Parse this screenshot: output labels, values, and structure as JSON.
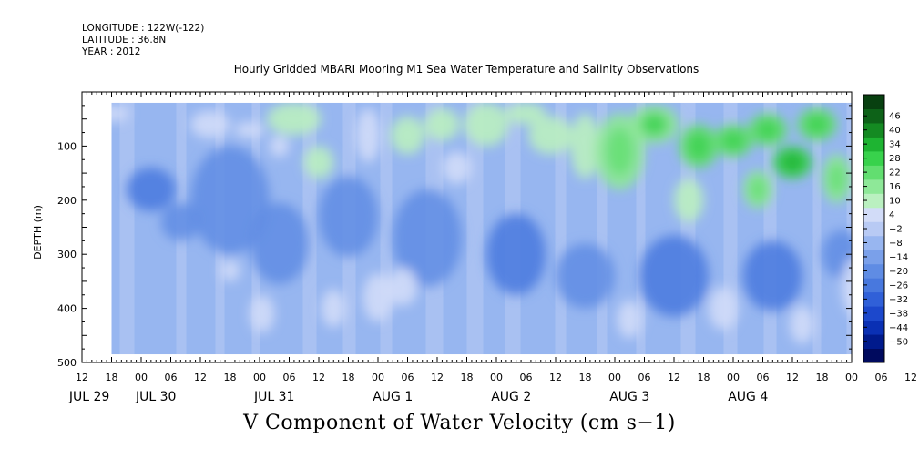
{
  "header": {
    "longitude": "LONGITUDE : 122W(-122)",
    "latitude": "LATITUDE : 36.8N",
    "year": "YEAR : 2012"
  },
  "chart_data": {
    "type": "heatmap",
    "title": "Hourly Gridded MBARI Mooring M1 Sea Water Temperature and Salinity Observations",
    "xlabel": "V Component of Water Velocity (cm s−1)",
    "ylabel": "DEPTH (m)",
    "ylim": [
      500,
      0
    ],
    "y_ticks": [
      100,
      200,
      300,
      400,
      500
    ],
    "x_range": [
      "2012-07-29 12:00",
      "2012-08-05 00:00"
    ],
    "x_hour_ticks": [
      "12",
      "18",
      "00",
      "06",
      "12",
      "18",
      "00",
      "06",
      "12",
      "18",
      "00",
      "06",
      "12",
      "18",
      "00",
      "06",
      "12",
      "18",
      "00",
      "06",
      "12",
      "18",
      "00",
      "06",
      "12",
      "18",
      "00",
      "06",
      "12",
      "18"
    ],
    "x_day_labels": [
      "JUL 29",
      "JUL 30",
      "JUL 31",
      "AUG  1",
      "AUG  2",
      "AUG  3",
      "AUG  4"
    ],
    "data_extent": {
      "time_start": "2012-07-29 18:00",
      "depth_top": 20,
      "depth_bottom": 485
    },
    "colorbar": {
      "levels": [
        -50,
        -44,
        -38,
        -32,
        -26,
        -20,
        -14,
        -8,
        -2,
        4,
        10,
        16,
        22,
        28,
        34,
        40,
        46
      ],
      "label_levels": [
        "46",
        "40",
        "34",
        "28",
        "22",
        "16",
        "10",
        "4",
        "−2",
        "−8",
        "−14",
        "−20",
        "−26",
        "−32",
        "−38",
        "−44",
        "−50"
      ],
      "colors": [
        "#000a5e",
        "#001a8c",
        "#0a30b4",
        "#1c48cc",
        "#3060d8",
        "#4878de",
        "#5f8ce4",
        "#7aa0ea",
        "#98b6f0",
        "#b8caf4",
        "#d2dcf8",
        "#baf0c0",
        "#8ee898",
        "#62de70",
        "#38d24c",
        "#1eb432",
        "#148a22",
        "#0d6218",
        "#084010"
      ]
    },
    "green_regions": [
      {
        "t": -4.0,
        "d": 380,
        "dt": 2.0,
        "dd": 30,
        "v": 6
      },
      {
        "t": 0.5,
        "d": 40,
        "dt": 3.0,
        "dd": 30,
        "v": 5
      },
      {
        "t": 20,
        "d": 60,
        "dt": 4.0,
        "dd": 50,
        "v": 5
      },
      {
        "t": 24,
        "d": 330,
        "dt": 2.0,
        "dd": 40,
        "v": 6
      },
      {
        "t": 28,
        "d": 70,
        "dt": 3.0,
        "dd": 30,
        "v": 6
      },
      {
        "t": 30.5,
        "d": 410,
        "dt": 2.5,
        "dd": 70,
        "v": 6
      },
      {
        "t": 34,
        "d": 100,
        "dt": 2.0,
        "dd": 40,
        "v": 6
      },
      {
        "t": 37,
        "d": 50,
        "dt": 5.5,
        "dd": 60,
        "v": 10
      },
      {
        "t": 42,
        "d": 130,
        "dt": 3.0,
        "dd": 60,
        "v": 10
      },
      {
        "t": 45,
        "d": 400,
        "dt": 2.5,
        "dd": 70,
        "v": 7
      },
      {
        "t": 52,
        "d": 80,
        "dt": 2.5,
        "dd": 100,
        "v": 9
      },
      {
        "t": 54,
        "d": 380,
        "dt": 3.0,
        "dd": 90,
        "v": 8
      },
      {
        "t": 59,
        "d": 360,
        "dt": 3.0,
        "dd": 70,
        "v": 7
      },
      {
        "t": 60,
        "d": 80,
        "dt": 3.5,
        "dd": 70,
        "v": 11
      },
      {
        "t": 67,
        "d": 60,
        "dt": 3.5,
        "dd": 60,
        "v": 12
      },
      {
        "t": 70,
        "d": 140,
        "dt": 3.0,
        "dd": 60,
        "v": 9
      },
      {
        "t": 76,
        "d": 60,
        "dt": 4.5,
        "dd": 80,
        "v": 10
      },
      {
        "t": 84,
        "d": 40,
        "dt": 4.0,
        "dd": 40,
        "v": 11
      },
      {
        "t": 89,
        "d": 80,
        "dt": 4.5,
        "dd": 70,
        "v": 12
      },
      {
        "t": 96,
        "d": 100,
        "dt": 3.0,
        "dd": 120,
        "v": 13
      },
      {
        "t": 103,
        "d": 110,
        "dt": 5.0,
        "dd": 140,
        "v": 16
      },
      {
        "t": 105,
        "d": 420,
        "dt": 2.5,
        "dd": 70,
        "v": 8
      },
      {
        "t": 110,
        "d": 60,
        "dt": 5.0,
        "dd": 70,
        "v": 20
      },
      {
        "t": 117,
        "d": 200,
        "dt": 3.0,
        "dd": 80,
        "v": 11
      },
      {
        "t": 119,
        "d": 100,
        "dt": 4.0,
        "dd": 80,
        "v": 22
      },
      {
        "t": 126,
        "d": 90,
        "dt": 4.0,
        "dd": 60,
        "v": 24
      },
      {
        "t": 124,
        "d": 400,
        "dt": 3.0,
        "dd": 80,
        "v": 8
      },
      {
        "t": 131,
        "d": 180,
        "dt": 3.0,
        "dd": 70,
        "v": 16
      },
      {
        "t": 133,
        "d": 70,
        "dt": 4.0,
        "dd": 60,
        "v": 22
      },
      {
        "t": 138,
        "d": 130,
        "dt": 4.0,
        "dd": 60,
        "v": 28
      },
      {
        "t": 140,
        "d": 430,
        "dt": 2.5,
        "dd": 70,
        "v": 8
      },
      {
        "t": 143,
        "d": 60,
        "dt": 4.0,
        "dd": 60,
        "v": 24
      },
      {
        "t": 147,
        "d": 160,
        "dt": 3.0,
        "dd": 90,
        "v": 18
      },
      {
        "t": 151,
        "d": 360,
        "dt": 3.0,
        "dd": 110,
        "v": 7
      },
      {
        "t": 154,
        "d": 150,
        "dt": 2.5,
        "dd": 60,
        "v": 12
      }
    ],
    "blue_cores": [
      {
        "t": 8,
        "d": 180,
        "dt": 5.0,
        "dd": 80,
        "v": -24
      },
      {
        "t": 14,
        "d": 240,
        "dt": 4.0,
        "dd": 70,
        "v": -20
      },
      {
        "t": 24,
        "d": 200,
        "dt": 8.0,
        "dd": 200,
        "v": -20
      },
      {
        "t": 34,
        "d": 280,
        "dt": 6.0,
        "dd": 150,
        "v": -18
      },
      {
        "t": 48,
        "d": 230,
        "dt": 6.0,
        "dd": 150,
        "v": -20
      },
      {
        "t": 64,
        "d": 270,
        "dt": 7.0,
        "dd": 180,
        "v": -20
      },
      {
        "t": 82,
        "d": 300,
        "dt": 6.0,
        "dd": 150,
        "v": -22
      },
      {
        "t": 96,
        "d": 340,
        "dt": 6.0,
        "dd": 120,
        "v": -18
      },
      {
        "t": 114,
        "d": 340,
        "dt": 7.0,
        "dd": 150,
        "v": -24
      },
      {
        "t": 134,
        "d": 340,
        "dt": 6.0,
        "dd": 130,
        "v": -22
      },
      {
        "t": 148,
        "d": 300,
        "dt": 4.0,
        "dd": 90,
        "v": -16
      }
    ]
  }
}
